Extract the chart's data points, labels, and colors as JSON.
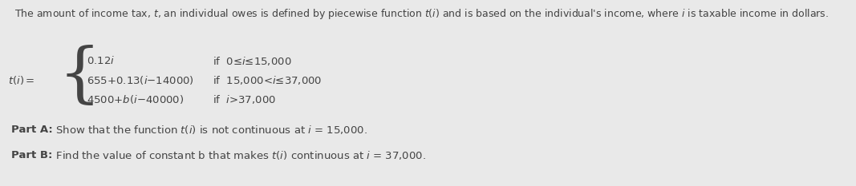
{
  "background_color": "#e9e9e9",
  "text_color": "#444444",
  "header": "The amount of income tax, $t$, an individual owes is defined by piecewise function $t(i)$ and is based on the individual's income, where $i$ is taxable income in dollars.",
  "lhs": "$t(i)=$",
  "expr1": "0.12$i$",
  "expr2": "655+0.13($i$−14000)",
  "expr3": "4500+$b$($i$−40000)",
  "cond1": "if  0≤$i$≤15,000",
  "cond2": "if  15,000<$i$≤37,000",
  "cond3": "if  $i$>37,000",
  "partA_bold": "Part A:",
  "partA_rest": "  Show that the function $t(i)$ is not continuous at $i$ = 15,000.",
  "partB_bold": "Part B:",
  "partB_rest": "  Find the value of constant b that makes $t(i)$ continuous at $i$ = 37,000.",
  "font_size_header": 9.0,
  "font_size_body": 9.5,
  "font_size_parts": 9.5,
  "brace_fontsize": 60
}
